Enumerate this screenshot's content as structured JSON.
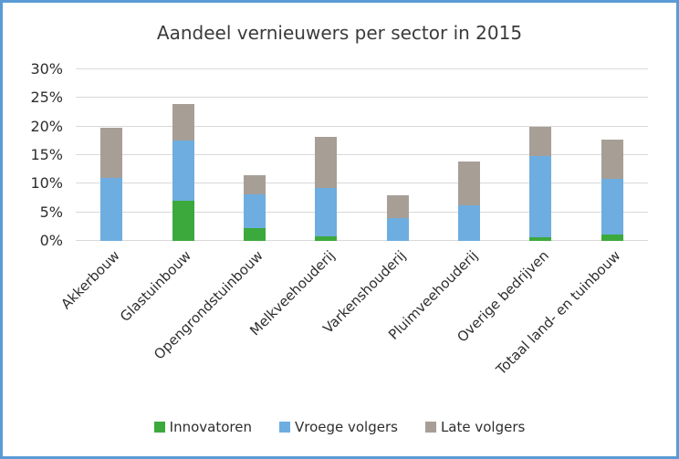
{
  "window": {
    "border_color": "#5B9BD5",
    "background": "#FFFFFF"
  },
  "chart_data": {
    "type": "bar",
    "stacked": true,
    "title": "Aandeel vernieuwers per sector in 2015",
    "categories": [
      "Akkerbouw",
      "Glastuinbouw",
      "Opengrondstuinbouw",
      "Melkveehouderij",
      "Varkenshouderij",
      "Pluimveehouderij",
      "Overige bedrijven",
      "Totaal land- en tuinbouw"
    ],
    "series": [
      {
        "name": "Innovatoren",
        "color": "#3CA93C",
        "values": [
          0,
          7,
          2.3,
          0.8,
          0,
          0,
          0.6,
          1.1
        ]
      },
      {
        "name": "Vroege volgers",
        "color": "#6EADE0",
        "values": [
          11,
          10.5,
          5.8,
          8.5,
          4,
          6.3,
          14.2,
          9.7
        ]
      },
      {
        "name": "Late volgers",
        "color": "#A79E96",
        "values": [
          8.8,
          6.4,
          3.4,
          8.9,
          4,
          7.6,
          5.2,
          6.9
        ]
      }
    ],
    "totals": [
      19.8,
      23.9,
      11.5,
      18.2,
      8,
      13.9,
      20,
      17.7
    ],
    "ylim": [
      0,
      30
    ],
    "ytick_step": 5,
    "ytick_labels": [
      "0%",
      "5%",
      "10%",
      "15%",
      "20%",
      "25%",
      "30%"
    ],
    "grid": true,
    "gridline_color": "#D9D9D9",
    "legend_position": "bottom"
  }
}
